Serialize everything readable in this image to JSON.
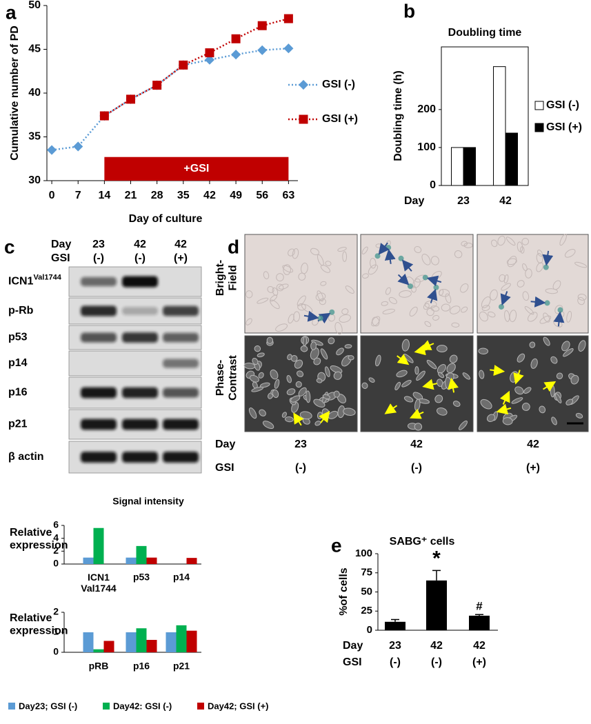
{
  "chart_data": [
    {
      "panel": "a",
      "type": "line",
      "xlabel": "Day of culture",
      "ylabel": "Cumulative number of PD",
      "x": [
        0,
        7,
        14,
        21,
        28,
        35,
        42,
        49,
        56,
        63
      ],
      "xlim": [
        -1.3,
        65.5
      ],
      "xticks": [
        0,
        7,
        14,
        21,
        28,
        35,
        42,
        49,
        56,
        63
      ],
      "ylim": [
        30,
        50
      ],
      "yticks": [
        30,
        35,
        40,
        45,
        50
      ],
      "series": [
        {
          "name": "GSI (-)",
          "color": "#5b9bd5",
          "marker": "diamond",
          "values": [
            33.5,
            33.9,
            37.4,
            39.3,
            40.9,
            43.2,
            43.8,
            44.4,
            44.9,
            45.1
          ]
        },
        {
          "name": "GSI (+)",
          "color": "#c00000",
          "marker": "square",
          "values": [
            null,
            null,
            37.4,
            39.3,
            40.9,
            43.2,
            44.6,
            46.2,
            47.7,
            48.5
          ]
        }
      ],
      "annotation": {
        "text": "+GSI",
        "x": [
          14,
          63
        ],
        "y": [
          30,
          32.7
        ],
        "color": "#c00000"
      }
    },
    {
      "panel": "b",
      "type": "bar",
      "title": "Doubling time",
      "ylabel": "Doubling time (h)",
      "row_label": "Day",
      "categories": [
        "23",
        "42"
      ],
      "ylim": [
        0,
        365
      ],
      "yticks": [
        0,
        100,
        200
      ],
      "series": [
        {
          "name": "GSI (-)",
          "color": "#ffffff",
          "values": [
            100,
            313
          ]
        },
        {
          "name": "GSI (+)",
          "color": "#000000",
          "values": [
            100,
            138
          ]
        }
      ]
    },
    {
      "type": "bar",
      "title": "Signal intensity",
      "ylabel": "Relative\nexpression",
      "categories": [
        "ICN1\nVal1744",
        "p53",
        "p14"
      ],
      "ylim": [
        0,
        6
      ],
      "yticks": [
        0,
        2,
        4,
        6
      ],
      "series": [
        {
          "color": "#5b9bd5",
          "values": [
            1,
            1,
            0
          ]
        },
        {
          "color": "#00b050",
          "values": [
            5.6,
            2.8,
            0
          ]
        },
        {
          "color": "#c00000",
          "values": [
            0,
            1,
            0.95
          ]
        }
      ]
    },
    {
      "type": "bar",
      "ylabel": "Relative\nexpression",
      "categories": [
        "pRB",
        "p16",
        "p21"
      ],
      "ylim": [
        0,
        2
      ],
      "yticks": [
        0,
        1,
        2
      ],
      "legend": "bottom",
      "series": [
        {
          "name": "Day23; GSI (-)",
          "color": "#5b9bd5",
          "values": [
            1,
            1,
            1
          ]
        },
        {
          "name": "Day42: GSI (-)",
          "color": "#00b050",
          "values": [
            0.15,
            1.2,
            1.35
          ]
        },
        {
          "name": "Day42; GSI (+)",
          "color": "#c00000",
          "values": [
            0.57,
            0.62,
            1.08
          ]
        }
      ]
    },
    {
      "panel": "e",
      "type": "errorbar",
      "title": "SABG⁺ cells",
      "ylabel": "%of  cells",
      "row_labels": [
        "Day",
        "GSI"
      ],
      "categories": [
        "23",
        "42",
        "42"
      ],
      "groups": [
        "(-)",
        "(-)",
        "(+)"
      ],
      "ylim": [
        0,
        100
      ],
      "yticks": [
        0,
        25,
        50,
        75,
        100
      ],
      "values": [
        11,
        65,
        19
      ],
      "errors": [
        3,
        13,
        1.5
      ],
      "color": "#000000",
      "annotations": [
        {
          "index": 1,
          "text": "*"
        },
        {
          "index": 2,
          "text": "#"
        }
      ]
    }
  ],
  "blot": {
    "panel": "c",
    "row_labels": [
      "Day",
      "GSI"
    ],
    "columns": [
      "23",
      "42",
      "42"
    ],
    "groups": [
      "(-)",
      "(-)",
      "(+)"
    ],
    "proteins": [
      {
        "name": "ICN1",
        "sup": "Val1744"
      },
      {
        "name": "p-Rb"
      },
      {
        "name": "p53"
      },
      {
        "name": "p14"
      },
      {
        "name": "p16"
      },
      {
        "name": "p21"
      },
      {
        "name": "β actin"
      }
    ]
  },
  "micrographs": {
    "panel": "d",
    "rows": [
      "Bright-\nField",
      "Phase-\nContrast"
    ],
    "row_labels": [
      "Day",
      "GSI"
    ],
    "columns": [
      "23",
      "42",
      "42"
    ],
    "groups": [
      "(-)",
      "(-)",
      "(+)"
    ]
  }
}
